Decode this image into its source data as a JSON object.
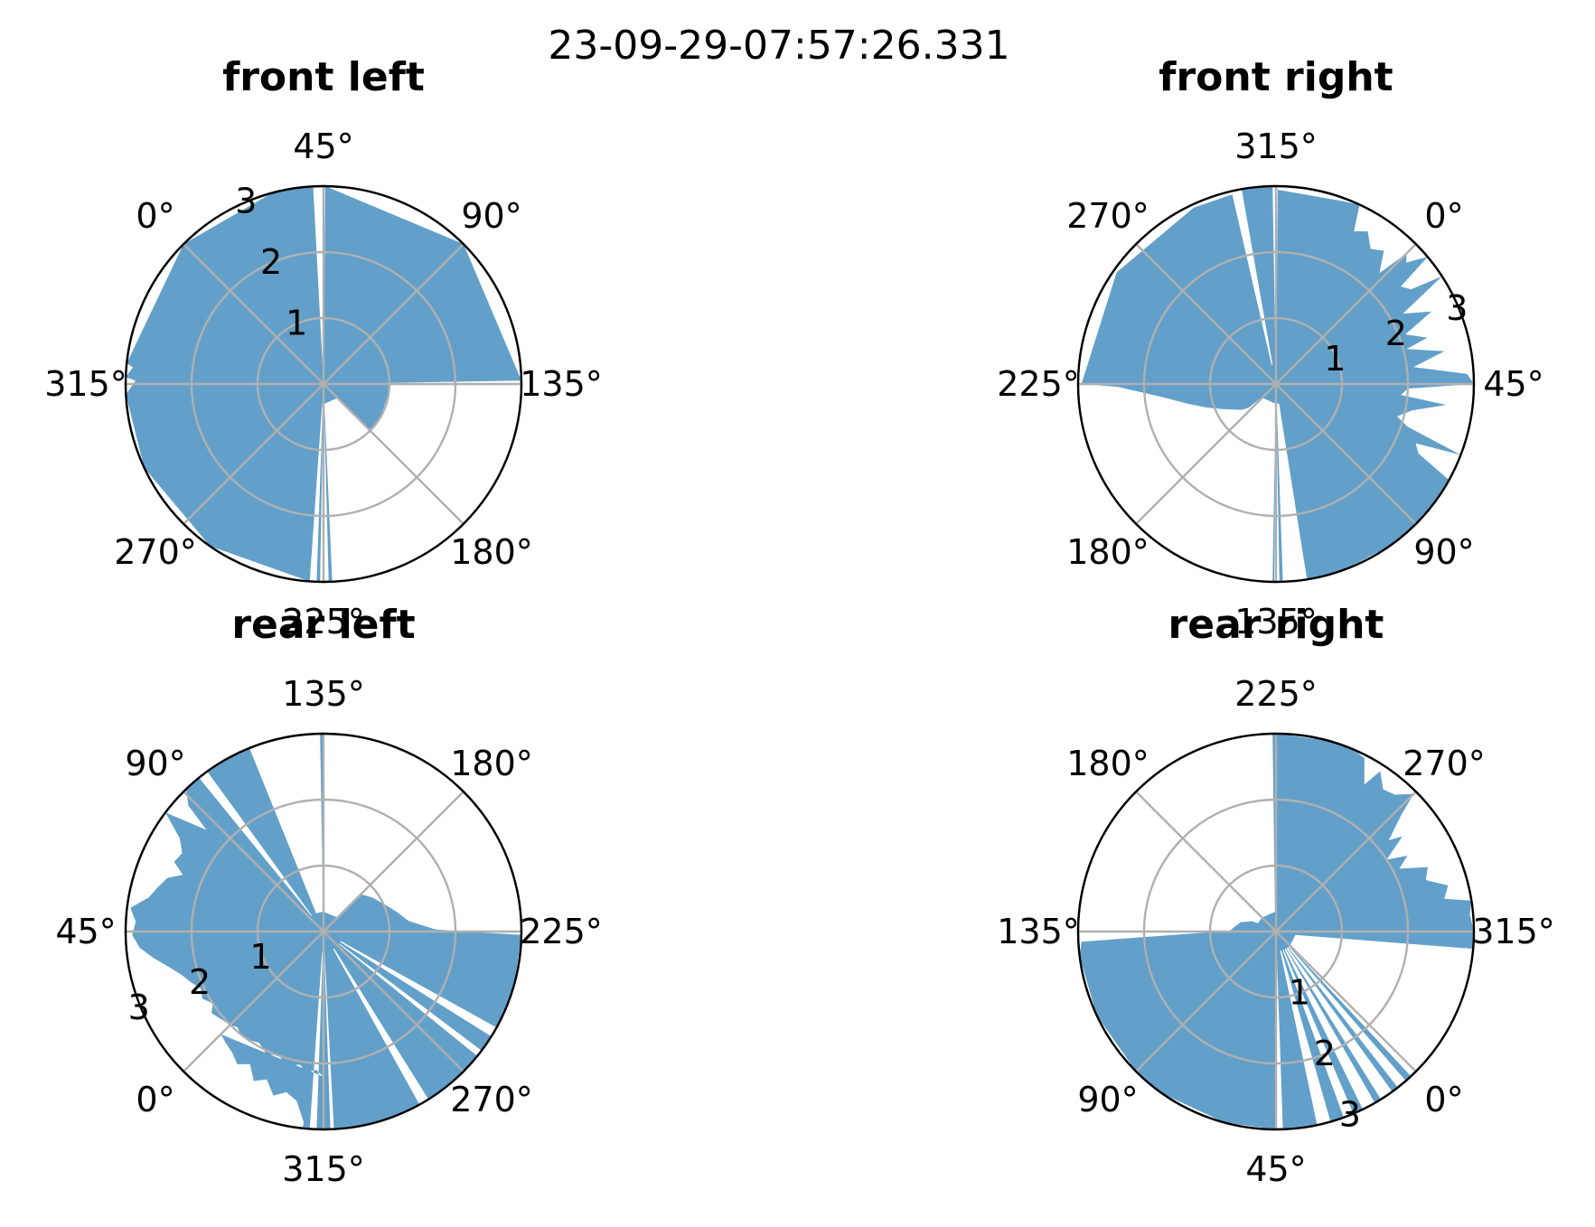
{
  "suptitle": "23-09-29-07:57:26.331",
  "chart_data": [
    {
      "type": "polar-area",
      "title": "front left",
      "theta_direction": "clockwise",
      "theta_ticks": [
        "45°",
        "90°",
        "135°",
        "180°",
        "225°",
        "270°",
        "315°",
        "0°"
      ],
      "r_ticks": [
        "1",
        "2",
        "3"
      ],
      "rlim": [
        0,
        3
      ],
      "color": "#1f77b4",
      "alpha": 0.7,
      "profile": [
        [
          -45,
          3
        ],
        [
          0,
          3
        ],
        [
          30,
          3
        ],
        [
          42,
          3
        ],
        [
          42,
          0.3
        ],
        [
          45.5,
          0.3
        ],
        [
          45.5,
          3
        ],
        [
          90,
          3
        ],
        [
          134,
          3
        ],
        [
          134,
          1.0
        ],
        [
          142,
          1.0
        ],
        [
          165,
          1.0
        ],
        [
          178,
          1.0
        ],
        [
          180,
          1.0
        ],
        [
          180,
          0.3
        ],
        [
          222.5,
          0.3
        ],
        [
          222.5,
          3
        ],
        [
          223.5,
          3
        ],
        [
          223.5,
          0.3
        ],
        [
          226,
          0.3
        ],
        [
          226,
          3
        ],
        [
          227,
          3
        ],
        [
          227,
          0.3
        ],
        [
          229,
          0.3
        ],
        [
          229,
          3
        ],
        [
          260,
          3
        ],
        [
          290,
          3
        ],
        [
          312,
          3
        ],
        [
          316,
          2.85
        ],
        [
          317,
          3
        ],
        [
          320,
          2.9
        ],
        [
          321,
          3
        ],
        [
          360,
          3
        ]
      ]
    },
    {
      "type": "polar-area",
      "title": "front right",
      "theta_direction": "clockwise",
      "theta_ticks": [
        "315°",
        "0°",
        "45°",
        "90°",
        "135°",
        "180°",
        "225°",
        "270°"
      ],
      "r_ticks": [
        "1",
        "2",
        "3"
      ],
      "rlim": [
        0,
        3
      ],
      "color": "#1f77b4",
      "alpha": 0.7,
      "profile": [
        [
          -45,
          2.95
        ],
        [
          -25,
          2.95
        ],
        [
          -20,
          3
        ],
        [
          -18,
          2.6
        ],
        [
          -14,
          2.7
        ],
        [
          -10,
          2.5
        ],
        [
          -6,
          2.6
        ],
        [
          -2,
          2.3
        ],
        [
          0,
          2.8
        ],
        [
          2,
          2.7
        ],
        [
          5,
          3
        ],
        [
          7,
          2.4
        ],
        [
          10,
          2.5
        ],
        [
          12,
          3
        ],
        [
          16,
          2.2
        ],
        [
          20,
          2.6
        ],
        [
          24,
          2.1
        ],
        [
          28,
          2.4
        ],
        [
          30,
          2.05
        ],
        [
          34,
          2.6
        ],
        [
          38,
          2.1
        ],
        [
          42,
          2.9
        ],
        [
          45,
          3
        ],
        [
          47,
          2.0
        ],
        [
          50,
          1.9
        ],
        [
          52,
          2.6
        ],
        [
          56,
          2.1
        ],
        [
          60,
          1.9
        ],
        [
          63,
          2.1
        ],
        [
          66,
          3
        ],
        [
          68,
          2.3
        ],
        [
          71,
          2.4
        ],
        [
          74,
          3
        ],
        [
          78,
          3
        ],
        [
          85,
          3
        ],
        [
          88,
          3
        ],
        [
          90,
          3
        ],
        [
          96,
          3
        ],
        [
          100,
          3
        ],
        [
          115,
          3
        ],
        [
          124,
          3
        ],
        [
          126,
          3
        ],
        [
          126,
          0.3
        ],
        [
          133,
          0.3
        ],
        [
          133,
          3
        ],
        [
          134,
          3
        ],
        [
          134,
          0.3
        ],
        [
          135.5,
          0.3
        ],
        [
          135.5,
          3
        ],
        [
          136,
          3
        ],
        [
          136,
          0.3
        ],
        [
          182,
          0.3
        ],
        [
          184,
          0.55
        ],
        [
          188,
          0.65
        ],
        [
          194,
          0.75
        ],
        [
          200,
          0.9
        ],
        [
          206,
          1.1
        ],
        [
          212,
          1.35
        ],
        [
          218,
          1.7
        ],
        [
          224,
          2.4
        ],
        [
          225,
          2.95
        ],
        [
          260,
          2.95
        ],
        [
          290,
          2.95
        ],
        [
          302,
          2.95
        ],
        [
          302,
          0.3
        ],
        [
          305,
          0.3
        ],
        [
          305,
          3
        ],
        [
          314,
          3
        ],
        [
          314,
          0.3
        ],
        [
          315.5,
          0.3
        ],
        [
          315.5,
          2.95
        ]
      ]
    },
    {
      "type": "polar-area",
      "title": "rear left",
      "theta_direction": "clockwise",
      "theta_ticks": [
        "135°",
        "180°",
        "225°",
        "270°",
        "315°",
        "0°",
        "45°",
        "90°"
      ],
      "r_ticks": [
        "1",
        "2",
        "3"
      ],
      "rlim": [
        0,
        3
      ],
      "color": "#1f77b4",
      "alpha": 0.7,
      "profile": [
        [
          -45,
          2.2
        ],
        [
          -42,
          2.1
        ],
        [
          -38,
          2.15
        ],
        [
          -35,
          2.05
        ],
        [
          -30,
          2.1
        ],
        [
          -25,
          2.0
        ],
        [
          -20,
          2.05
        ],
        [
          -15,
          1.95
        ],
        [
          -10,
          2.0
        ],
        [
          -6,
          2.0
        ],
        [
          -3,
          1.95
        ],
        [
          0,
          2.0
        ],
        [
          5,
          2.05
        ],
        [
          9,
          2.1
        ],
        [
          12,
          2.0
        ],
        [
          16,
          2.1
        ],
        [
          20,
          2.05
        ],
        [
          24,
          2.15
        ],
        [
          28,
          2.25
        ],
        [
          32,
          2.4
        ],
        [
          36,
          2.6
        ],
        [
          40,
          2.8
        ],
        [
          44,
          2.9
        ],
        [
          48,
          2.85
        ],
        [
          52,
          2.95
        ],
        [
          56,
          2.7
        ],
        [
          60,
          2.6
        ],
        [
          64,
          2.5
        ],
        [
          67,
          2.3
        ],
        [
          70,
          2.5
        ],
        [
          74,
          2.45
        ],
        [
          78,
          2.6
        ],
        [
          82,
          3
        ],
        [
          86,
          2.35
        ],
        [
          88,
          2.8
        ],
        [
          91,
          3
        ],
        [
          94,
          3
        ],
        [
          96,
          3
        ],
        [
          97,
          0.3
        ],
        [
          99,
          0.3
        ],
        [
          99,
          3
        ],
        [
          104,
          3
        ],
        [
          110,
          3
        ],
        [
          113,
          3
        ],
        [
          113,
          0.3
        ],
        [
          134,
          0.3
        ],
        [
          134,
          3
        ],
        [
          135,
          3
        ],
        [
          135,
          0.3
        ],
        [
          180,
          0.3
        ],
        [
          180,
          0.8
        ],
        [
          190,
          0.9
        ],
        [
          200,
          1.0
        ],
        [
          210,
          1.15
        ],
        [
          218,
          1.3
        ],
        [
          224,
          1.7
        ],
        [
          226,
          3
        ],
        [
          240,
          3
        ],
        [
          250,
          3
        ],
        [
          254,
          3
        ],
        [
          254,
          0.3
        ],
        [
          257,
          0.3
        ],
        [
          257,
          3
        ],
        [
          262,
          3
        ],
        [
          262,
          0.3
        ],
        [
          264,
          0.3
        ],
        [
          264,
          3
        ],
        [
          272,
          3
        ],
        [
          280,
          3
        ],
        [
          283,
          3
        ],
        [
          283,
          0.3
        ],
        [
          286,
          0.3
        ],
        [
          286,
          3
        ],
        [
          292,
          3
        ],
        [
          300,
          3
        ],
        [
          310,
          3
        ],
        [
          312,
          3
        ],
        [
          312,
          0.3
        ],
        [
          313,
          0.3
        ],
        [
          313,
          3
        ],
        [
          315,
          3
        ],
        [
          317,
          3
        ],
        [
          317,
          0.3
        ],
        [
          319,
          0.3
        ],
        [
          319,
          3
        ],
        [
          321,
          3
        ],
        [
          321,
          2.9
        ],
        [
          324,
          2.6
        ],
        [
          328,
          2.5
        ],
        [
          332,
          2.6
        ],
        [
          336,
          2.4
        ],
        [
          340,
          2.5
        ],
        [
          344,
          2.3
        ],
        [
          348,
          2.4
        ],
        [
          352,
          2.3
        ],
        [
          356,
          2.25
        ],
        [
          360,
          2.2
        ]
      ]
    },
    {
      "type": "polar-area",
      "title": "rear right",
      "theta_direction": "clockwise",
      "theta_ticks": [
        "225°",
        "270°",
        "315°",
        "0°",
        "45°",
        "90°",
        "135°",
        "180°"
      ],
      "r_ticks": [
        "1",
        "2",
        "3"
      ],
      "rlim": [
        0,
        3
      ],
      "color": "#1f77b4",
      "alpha": 0.7,
      "profile": [
        [
          -45,
          3
        ],
        [
          -40,
          3
        ],
        [
          -35,
          0.3
        ],
        [
          0,
          0.3
        ],
        [
          2,
          0.3
        ],
        [
          2,
          3
        ],
        [
          4,
          3
        ],
        [
          4,
          0.3
        ],
        [
          7,
          0.3
        ],
        [
          7,
          3
        ],
        [
          9,
          3
        ],
        [
          9,
          0.3
        ],
        [
          13,
          0.3
        ],
        [
          13,
          3
        ],
        [
          15,
          3
        ],
        [
          15,
          0.3
        ],
        [
          19,
          0.3
        ],
        [
          19,
          3
        ],
        [
          22,
          3
        ],
        [
          22,
          0.3
        ],
        [
          25,
          0.3
        ],
        [
          25,
          3
        ],
        [
          29,
          3
        ],
        [
          29,
          0.3
        ],
        [
          33,
          0.3
        ],
        [
          33,
          3
        ],
        [
          40,
          3
        ],
        [
          43,
          3
        ],
        [
          43,
          0.3
        ],
        [
          45,
          0.3
        ],
        [
          45,
          3
        ],
        [
          60,
          3
        ],
        [
          80,
          3
        ],
        [
          90,
          3
        ],
        [
          110,
          3
        ],
        [
          128,
          3
        ],
        [
          132,
          2.95
        ],
        [
          136,
          0.7
        ],
        [
          140,
          0.65
        ],
        [
          150,
          0.55
        ],
        [
          158,
          0.4
        ],
        [
          160,
          0.3
        ],
        [
          180,
          0.3
        ],
        [
          222,
          0.3
        ],
        [
          224,
          3
        ],
        [
          225,
          3
        ],
        [
          240,
          3
        ],
        [
          248,
          3
        ],
        [
          252,
          2.95
        ],
        [
          256,
          2.6
        ],
        [
          258,
          2.9
        ],
        [
          262,
          2.7
        ],
        [
          266,
          2.75
        ],
        [
          270,
          2.95
        ],
        [
          272,
          2.6
        ],
        [
          276,
          2.2
        ],
        [
          278,
          2.4
        ],
        [
          282,
          2.0
        ],
        [
          285,
          2.3
        ],
        [
          288,
          2.1
        ],
        [
          292,
          2.5
        ],
        [
          296,
          2.4
        ],
        [
          300,
          2.7
        ],
        [
          304,
          2.6
        ],
        [
          306,
          3
        ],
        [
          310,
          2.95
        ],
        [
          315,
          3
        ]
      ]
    }
  ]
}
